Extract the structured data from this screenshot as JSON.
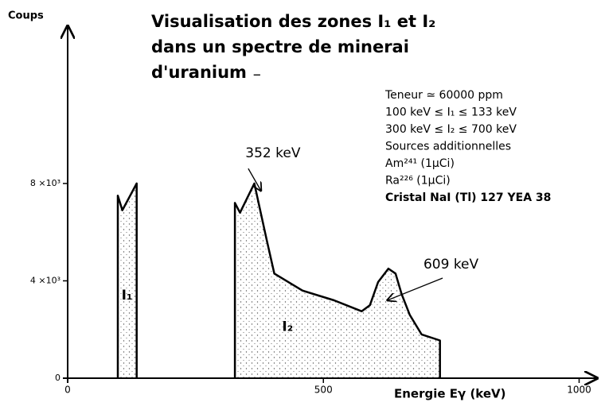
{
  "chart_data": {
    "type": "area",
    "title_lines": [
      "Visualisation des zones I₁ et I₂",
      "dans un spectre de minerai",
      "d'uranium ₋"
    ],
    "notes": [
      "Teneur ≃ 60000 ppm",
      "100 keV ≤ I₁ ≤ 133 keV",
      "300 keV ≤ I₂ ≤ 700 keV",
      "Sources additionnelles",
      "Am²⁴¹ (1µCi)",
      "Ra²²⁶ (1µCi)",
      "Cristal NaI (Tl) 127 YEA 38"
    ],
    "y_label": "Coups",
    "x_label": "Energie Eγ (keV)",
    "x": [
      98,
      98,
      107,
      135,
      135,
      null,
      327,
      327,
      337,
      365,
      389,
      404,
      459,
      521,
      575,
      591,
      607,
      627,
      641,
      653,
      669,
      692,
      728,
      728
    ],
    "values": [
      0,
      7500,
      6900,
      8000,
      0,
      null,
      0,
      7200,
      6800,
      8000,
      5700,
      4300,
      3600,
      3200,
      2750,
      3000,
      3950,
      4500,
      4300,
      3450,
      2600,
      1800,
      1550,
      0
    ],
    "color": "#000000",
    "xlim": [
      0,
      1035
    ],
    "ylim": [
      0,
      14200
    ],
    "xticks": [
      0,
      500,
      1000
    ],
    "yticks": [
      0,
      {
        "value": 4000,
        "label": "4 ×10³"
      },
      {
        "value": 8000,
        "label": "8 ×10³"
      }
    ],
    "zones": [
      {
        "label": "I₁",
        "x": 116,
        "y": 3400
      },
      {
        "label": "I₂",
        "x": 430,
        "y": 2100
      }
    ],
    "annotations": [
      {
        "text": "352 keV",
        "x": 378,
        "y": 7700
      },
      {
        "text": "609 keV",
        "x": 625,
        "y": 3200
      }
    ]
  }
}
